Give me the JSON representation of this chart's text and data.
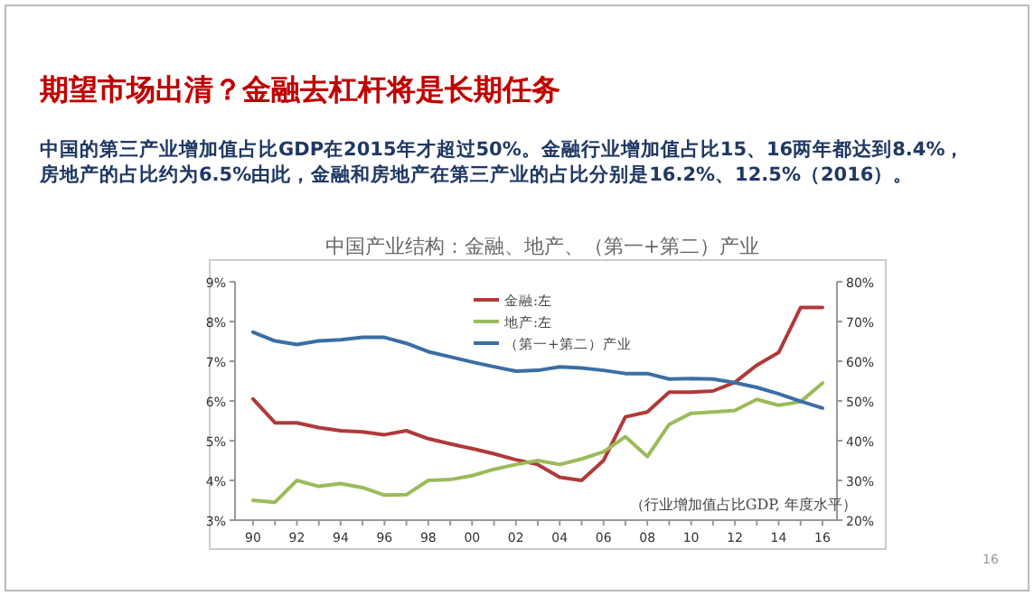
{
  "chart_data": {
    "type": "line",
    "title": "期望市场出清？金融去杠杆将是长期任务",
    "subtitle": "中国的第三产业增加值占比GDP在2015年才超过50%。金融行业增加值占比15、16两年都达到8.4%，房地产的占比约为6.5%由此，金融和房地产在第三产业的占比分别是16.2%、12.5%（2016）。",
    "annotations": [
      "中国产业结构：金融、地产、（第一+第二）产业",
      "（行业增加值占比GDP, 年度水平）",
      "16"
    ],
    "categories": [
      "90",
      null,
      "92",
      null,
      "94",
      null,
      "96",
      null,
      "98",
      null,
      "00",
      null,
      "02",
      null,
      "04",
      null,
      "06",
      null,
      "08",
      null,
      "10",
      null,
      "12",
      null,
      "14",
      null,
      "16"
    ],
    "series": [
      {
        "name": "金融:左",
        "color": "#b03a3a",
        "values": [
          6.05,
          5.45,
          5.45,
          5.33,
          5.25,
          5.22,
          5.15,
          5.25,
          5.05,
          4.92,
          4.8,
          4.67,
          4.52,
          4.4,
          4.08,
          4.0,
          4.5,
          5.6,
          5.72,
          6.22,
          6.22,
          6.25,
          6.47,
          6.9,
          7.22,
          8.35,
          8.35
        ]
      },
      {
        "name": "地产:左",
        "color": "#9bbb59",
        "values": [
          3.5,
          3.45,
          4.0,
          3.85,
          3.92,
          3.82,
          3.63,
          3.64,
          4.0,
          4.02,
          4.12,
          4.28,
          4.4,
          4.5,
          4.4,
          4.54,
          4.72,
          5.1,
          4.6,
          5.41,
          5.69,
          5.72,
          5.76,
          6.04,
          5.89,
          5.98,
          6.45
        ]
      },
      {
        "name": "（第一+第二）产业",
        "color": "#3a6ea5",
        "axis": "y2",
        "values": [
          67.3,
          65.1,
          64.2,
          65.1,
          65.4,
          66.0,
          66.0,
          64.5,
          62.4,
          61.1,
          59.8,
          58.6,
          57.5,
          57.7,
          58.6,
          58.3,
          57.7,
          56.9,
          56.9,
          55.5,
          55.6,
          55.5,
          54.6,
          53.4,
          51.8,
          49.9,
          48.2
        ]
      }
    ],
    "ylim": [
      3,
      9
    ],
    "yticks": [
      {
        "value": 3,
        "label": "3%"
      },
      {
        "value": 4,
        "label": "4%"
      },
      {
        "value": 5,
        "label": "5%"
      },
      {
        "value": 6,
        "label": "6%"
      },
      {
        "value": 7,
        "label": "7%"
      },
      {
        "value": 8,
        "label": "8%"
      },
      {
        "value": 9,
        "label": "9%"
      }
    ],
    "y2lim": [
      20,
      80
    ],
    "y2ticks": [
      {
        "value": 20,
        "label": "20%"
      },
      {
        "value": 30,
        "label": "30%"
      },
      {
        "value": 40,
        "label": "40%"
      },
      {
        "value": 50,
        "label": "50%"
      },
      {
        "value": 60,
        "label": "60%"
      },
      {
        "value": 70,
        "label": "70%"
      },
      {
        "value": 80,
        "label": "80%"
      }
    ],
    "legend": "top right"
  }
}
